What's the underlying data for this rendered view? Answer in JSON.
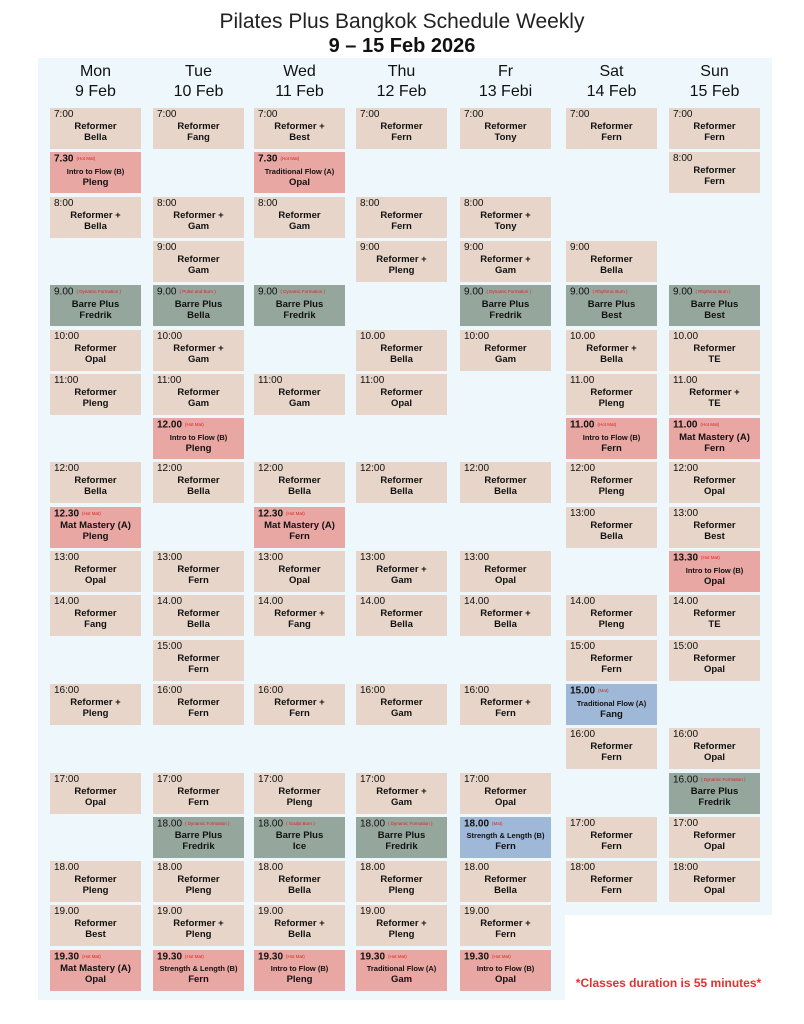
{
  "header": {
    "title": "Pilates Plus Bangkok Schedule Weekly",
    "subtitle": "9 – 15 Feb 2026"
  },
  "note": "*Classes duration is 55 minutes*",
  "colors": {
    "reformer": "#e6d5c8",
    "hotmat": "#e8a7a3",
    "barre": "#95a69d",
    "mat": "#9fb8d8",
    "panel": "#eef8fc",
    "tag": "#e02020"
  },
  "days": [
    {
      "day": "Mon",
      "date": "9 Feb",
      "classes": [
        {
          "time": "7:00",
          "type": "reformer",
          "name": "Reformer",
          "instructor": "Bella"
        },
        {
          "time": "7.30",
          "tag": "(Hot Mat)",
          "type": "hotmat",
          "name": "Intro to Flow (B)",
          "instructor": "Pleng"
        },
        {
          "time": "8:00",
          "type": "reformer",
          "name": "Reformer +",
          "instructor": "Bella"
        },
        null,
        {
          "time": "9.00",
          "tag": "( Dynamic Formation )",
          "type": "barre",
          "name": "Barre Plus",
          "instructor": "Fredrik"
        },
        {
          "time": "10:00",
          "type": "reformer",
          "name": "Reformer",
          "instructor": "Opal"
        },
        {
          "time": "11:00",
          "type": "reformer",
          "name": "Reformer",
          "instructor": "Pleng"
        },
        null,
        {
          "time": "12:00",
          "type": "reformer",
          "name": "Reformer",
          "instructor": "Bella"
        },
        {
          "time": "12.30",
          "tag": "(Hot Mat)",
          "type": "hotmat",
          "name": "Mat Mastery (A)",
          "instructor": "Pleng"
        },
        {
          "time": "13:00",
          "type": "reformer",
          "name": "Reformer",
          "instructor": "Opal"
        },
        {
          "time": "14.00",
          "type": "reformer",
          "name": "Reformer",
          "instructor": "Fang"
        },
        null,
        {
          "time": "16:00",
          "type": "reformer",
          "name": "Reformer +",
          "instructor": "Pleng"
        },
        null,
        {
          "time": "17:00",
          "type": "reformer",
          "name": "Reformer",
          "instructor": "Opal"
        },
        null,
        {
          "time": "18.00",
          "type": "reformer",
          "name": "Reformer",
          "instructor": "Pleng"
        },
        {
          "time": "19.00",
          "type": "reformer",
          "name": "Reformer",
          "instructor": "Best"
        },
        {
          "time": "19.30",
          "tag": "(Hot Mat)",
          "type": "hotmat",
          "name": "Mat Mastery (A)",
          "instructor": "Opal"
        }
      ]
    },
    {
      "day": "Tue",
      "date": "10 Feb",
      "classes": [
        {
          "time": "7:00",
          "type": "reformer",
          "name": "Reformer",
          "instructor": "Fang"
        },
        null,
        {
          "time": "8:00",
          "type": "reformer",
          "name": "Reformer +",
          "instructor": "Gam"
        },
        {
          "time": "9:00",
          "type": "reformer",
          "name": "Reformer",
          "instructor": "Gam"
        },
        {
          "time": "9.00",
          "tag": "( Pulse and Burn )",
          "type": "barre",
          "name": "Barre Plus",
          "instructor": "Bella"
        },
        {
          "time": "10:00",
          "type": "reformer",
          "name": "Reformer +",
          "instructor": "Gam"
        },
        {
          "time": "11:00",
          "type": "reformer",
          "name": "Reformer",
          "instructor": "Gam"
        },
        {
          "time": "12.00",
          "tag": "(Hot Mat)",
          "type": "hotmat",
          "name": "Intro to Flow (B)",
          "instructor": "Pleng"
        },
        {
          "time": "12:00",
          "type": "reformer",
          "name": "Reformer",
          "instructor": "Bella"
        },
        null,
        {
          "time": "13:00",
          "type": "reformer",
          "name": "Reformer",
          "instructor": "Fern"
        },
        {
          "time": "14.00",
          "type": "reformer",
          "name": "Reformer",
          "instructor": "Bella"
        },
        {
          "time": "15:00",
          "type": "reformer",
          "name": "Reformer",
          "instructor": "Fern"
        },
        {
          "time": "16:00",
          "type": "reformer",
          "name": "Reformer",
          "instructor": "Fern"
        },
        null,
        {
          "time": "17:00",
          "type": "reformer",
          "name": "Reformer",
          "instructor": "Fern"
        },
        {
          "time": "18.00",
          "tag": "( Dynamic Formation )",
          "type": "barre",
          "name": "Barre Plus",
          "instructor": "Fredrik"
        },
        {
          "time": "18.00",
          "type": "reformer",
          "name": "Reformer",
          "instructor": "Pleng"
        },
        {
          "time": "19.00",
          "type": "reformer",
          "name": "Reformer +",
          "instructor": "Pleng"
        },
        {
          "time": "19.30",
          "tag": "(Hot Mat)",
          "type": "hotmat",
          "name": "Strength & Length (B)",
          "instructor": "Fern"
        }
      ]
    },
    {
      "day": "Wed",
      "date": "11 Feb",
      "classes": [
        {
          "time": "7:00",
          "type": "reformer",
          "name": "Reformer +",
          "instructor": "Best"
        },
        {
          "time": "7.30",
          "tag": "(Hot Mat)",
          "type": "hotmat",
          "name": "Traditional Flow (A)",
          "instructor": "Opal"
        },
        {
          "time": "8:00",
          "type": "reformer",
          "name": "Reformer",
          "instructor": "Gam"
        },
        null,
        {
          "time": "9.00",
          "tag": "( Dynamic Formation )",
          "type": "barre",
          "name": "Barre Plus",
          "instructor": "Fredrik"
        },
        null,
        {
          "time": "11:00",
          "type": "reformer",
          "name": "Reformer",
          "instructor": "Gam"
        },
        null,
        {
          "time": "12:00",
          "type": "reformer",
          "name": "Reformer",
          "instructor": "Bella"
        },
        {
          "time": "12.30",
          "tag": "(Hot Mat)",
          "type": "hotmat",
          "name": "Mat Mastery (A)",
          "instructor": "Fern"
        },
        {
          "time": "13:00",
          "type": "reformer",
          "name": "Reformer",
          "instructor": "Opal"
        },
        {
          "time": "14.00",
          "type": "reformer",
          "name": "Reformer +",
          "instructor": "Fang"
        },
        null,
        {
          "time": "16:00",
          "type": "reformer",
          "name": "Reformer +",
          "instructor": "Fern"
        },
        null,
        {
          "time": "17:00",
          "type": "reformer",
          "name": "Reformer",
          "instructor": "Pleng"
        },
        {
          "time": "18.00",
          "tag": "( Sculpt Burn )",
          "type": "barre",
          "name": "Barre Plus",
          "instructor": "Ice"
        },
        {
          "time": "18.00",
          "type": "reformer",
          "name": "Reformer",
          "instructor": "Bella"
        },
        {
          "time": "19.00",
          "type": "reformer",
          "name": "Reformer +",
          "instructor": "Bella"
        },
        {
          "time": "19.30",
          "tag": "(Hot Mat)",
          "type": "hotmat",
          "name": "Intro to Flow (B)",
          "instructor": "Pleng"
        }
      ]
    },
    {
      "day": "Thu",
      "date": "12 Feb",
      "classes": [
        {
          "time": "7:00",
          "type": "reformer",
          "name": "Reformer",
          "instructor": "Fern"
        },
        null,
        {
          "time": "8:00",
          "type": "reformer",
          "name": "Reformer",
          "instructor": "Fern"
        },
        {
          "time": "9:00",
          "type": "reformer",
          "name": "Reformer +",
          "instructor": "Pleng"
        },
        null,
        {
          "time": "10.00",
          "type": "reformer",
          "name": "Reformer",
          "instructor": "Bella"
        },
        {
          "time": "11:00",
          "type": "reformer",
          "name": "Reformer",
          "instructor": "Opal"
        },
        null,
        {
          "time": "12:00",
          "type": "reformer",
          "name": "Reformer",
          "instructor": "Bella"
        },
        null,
        {
          "time": "13:00",
          "type": "reformer",
          "name": "Reformer +",
          "instructor": "Gam"
        },
        {
          "time": "14.00",
          "type": "reformer",
          "name": "Reformer",
          "instructor": "Bella"
        },
        null,
        {
          "time": "16:00",
          "type": "reformer",
          "name": "Reformer",
          "instructor": "Gam"
        },
        null,
        {
          "time": "17:00",
          "type": "reformer",
          "name": "Reformer +",
          "instructor": "Gam"
        },
        {
          "time": "18.00",
          "tag": "( Dynamic Formation )",
          "type": "barre",
          "name": "Barre Plus",
          "instructor": "Fredrik"
        },
        {
          "time": "18.00",
          "type": "reformer",
          "name": "Reformer",
          "instructor": "Pleng"
        },
        {
          "time": "19.00",
          "type": "reformer",
          "name": "Reformer +",
          "instructor": "Pleng"
        },
        {
          "time": "19.30",
          "tag": "(Hot Mat)",
          "type": "hotmat",
          "name": "Traditional Flow (A)",
          "instructor": "Gam"
        }
      ]
    },
    {
      "day": "Fr",
      "date": "13 Febi",
      "classes": [
        {
          "time": "7:00",
          "type": "reformer",
          "name": "Reformer",
          "instructor": "Tony"
        },
        null,
        {
          "time": "8:00",
          "type": "reformer",
          "name": "Reformer +",
          "instructor": "Tony"
        },
        {
          "time": "9:00",
          "type": "reformer",
          "name": "Reformer +",
          "instructor": "Gam"
        },
        {
          "time": "9.00",
          "tag": "( Dynamic Formation )",
          "type": "barre",
          "name": "Barre Plus",
          "instructor": "Fredrik"
        },
        {
          "time": "10:00",
          "type": "reformer",
          "name": "Reformer",
          "instructor": "Gam"
        },
        null,
        null,
        {
          "time": "12:00",
          "type": "reformer",
          "name": "Reformer",
          "instructor": "Bella"
        },
        null,
        {
          "time": "13:00",
          "type": "reformer",
          "name": "Reformer",
          "instructor": "Opal"
        },
        {
          "time": "14.00",
          "type": "reformer",
          "name": "Reformer +",
          "instructor": "Bella"
        },
        null,
        {
          "time": "16:00",
          "type": "reformer",
          "name": "Reformer +",
          "instructor": "Fern"
        },
        null,
        {
          "time": "17:00",
          "type": "reformer",
          "name": "Reformer",
          "instructor": "Opal"
        },
        {
          "time": "18.00",
          "tag": "(Mat)",
          "type": "mat",
          "name": "Strength & Length (B)",
          "instructor": "Fern"
        },
        {
          "time": "18.00",
          "type": "reformer",
          "name": "Reformer",
          "instructor": "Bella"
        },
        {
          "time": "19.00",
          "type": "reformer",
          "name": "Reformer +",
          "instructor": "Fern"
        },
        {
          "time": "19.30",
          "tag": "(Hot Mat)",
          "type": "hotmat",
          "name": "Intro to Flow (B)",
          "instructor": "Opal"
        }
      ]
    },
    {
      "day": "Sat",
      "date": "14 Feb",
      "classes": [
        {
          "time": "7:00",
          "type": "reformer",
          "name": "Reformer",
          "instructor": "Fern"
        },
        null,
        null,
        {
          "time": "9:00",
          "type": "reformer",
          "name": "Reformer",
          "instructor": "Bella"
        },
        {
          "time": "9.00",
          "tag": "( Rhythmic Burn )",
          "type": "barre",
          "name": "Barre Plus",
          "instructor": "Best"
        },
        {
          "time": "10.00",
          "type": "reformer",
          "name": "Reformer +",
          "instructor": "Bella"
        },
        {
          "time": "11.00",
          "type": "reformer",
          "name": "Reformer",
          "instructor": "Pleng"
        },
        {
          "time": "11.00",
          "tag": "(Hot Mat)",
          "type": "hotmat",
          "name": "Intro to Flow (B)",
          "instructor": "Fern"
        },
        {
          "time": "12:00",
          "type": "reformer",
          "name": "Reformer",
          "instructor": "Pleng"
        },
        {
          "time": "13:00",
          "type": "reformer",
          "name": "Reformer",
          "instructor": "Bella"
        },
        null,
        {
          "time": "14.00",
          "type": "reformer",
          "name": "Reformer",
          "instructor": "Pleng"
        },
        {
          "time": "15:00",
          "type": "reformer",
          "name": "Reformer",
          "instructor": "Fern"
        },
        {
          "time": "15.00",
          "tag": "(Mat)",
          "type": "mat",
          "name": "Traditional Flow (A)",
          "instructor": "Fang"
        },
        {
          "time": "16:00",
          "type": "reformer",
          "name": "Reformer",
          "instructor": "Fern"
        },
        null,
        {
          "time": "17:00",
          "type": "reformer",
          "name": "Reformer",
          "instructor": "Fern"
        },
        {
          "time": "18:00",
          "type": "reformer",
          "name": "Reformer",
          "instructor": "Fern"
        }
      ]
    },
    {
      "day": "Sun",
      "date": "15 Feb",
      "classes": [
        {
          "time": "7:00",
          "type": "reformer",
          "name": "Reformer",
          "instructor": "Fern"
        },
        {
          "time": "8:00",
          "type": "reformer",
          "name": "Reformer",
          "instructor": "Fern"
        },
        null,
        null,
        {
          "time": "9.00",
          "tag": "( Rhythmic Burn )",
          "type": "barre",
          "name": "Barre Plus",
          "instructor": "Best"
        },
        {
          "time": "10.00",
          "type": "reformer",
          "name": "Reformer",
          "instructor": "TE"
        },
        {
          "time": "11.00",
          "type": "reformer",
          "name": "Reformer +",
          "instructor": "TE"
        },
        {
          "time": "11.00",
          "tag": "(Hot Mat)",
          "type": "hotmat",
          "name": "Mat Mastery (A)",
          "instructor": "Fern"
        },
        {
          "time": "12:00",
          "type": "reformer",
          "name": "Reformer",
          "instructor": "Opal"
        },
        {
          "time": "13:00",
          "type": "reformer",
          "name": "Reformer",
          "instructor": "Best"
        },
        {
          "time": "13.30",
          "tag": "(Hot Mat)",
          "type": "hotmat",
          "name": "Intro to Flow (B)",
          "instructor": "Opal"
        },
        {
          "time": "14.00",
          "type": "reformer",
          "name": "Reformer",
          "instructor": "TE"
        },
        {
          "time": "15:00",
          "type": "reformer",
          "name": "Reformer",
          "instructor": "Opal"
        },
        null,
        {
          "time": "16:00",
          "type": "reformer",
          "name": "Reformer",
          "instructor": "Opal"
        },
        {
          "time": "16.00",
          "tag": "( Dynamic Formation )",
          "type": "barre",
          "name": "Barre Plus",
          "instructor": "Fredrik"
        },
        {
          "time": "17:00",
          "type": "reformer",
          "name": "Reformer",
          "instructor": "Opal"
        },
        {
          "time": "18:00",
          "type": "reformer",
          "name": "Reformer",
          "instructor": "Opal"
        }
      ]
    }
  ]
}
